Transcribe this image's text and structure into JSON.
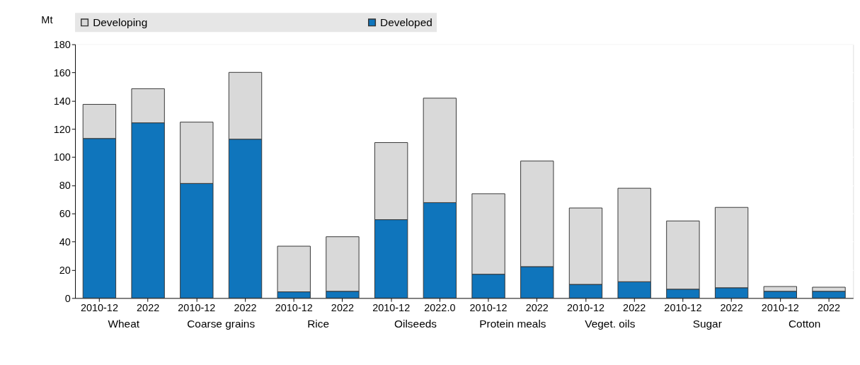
{
  "chart_data": {
    "type": "bar",
    "stacked": true,
    "ylabel": "Mt",
    "categories": [
      "2010-12",
      "2022",
      "2010-12",
      "2022",
      "2010-12",
      "2022",
      "2010-12",
      "2022.0",
      "2010-12",
      "2022",
      "2010-12",
      "2022",
      "2010-12",
      "2022",
      "2010-12",
      "2022"
    ],
    "series": [
      {
        "name": "Developed",
        "color": "#0f75bc",
        "values": [
          113.2,
          124.3,
          81.3,
          112.7,
          4.4,
          4.8,
          55.6,
          67.7,
          16.9,
          22.3,
          9.7,
          11.6,
          6.3,
          7.3,
          4.8,
          4.8
        ]
      },
      {
        "name": "Developing",
        "color": "#d9d9d9",
        "values": [
          24.2,
          24.2,
          43.5,
          47.4,
          32.4,
          38.7,
          54.7,
          74.1,
          57.1,
          74.9,
          54.2,
          66.3,
          48.4,
          57.0,
          3.4,
          2.9
        ]
      }
    ],
    "annotations": [
      "Wheat",
      "Coarse grains",
      "Rice",
      "Oilseeds",
      "Protein meals",
      "Veget. oils",
      "Sugar",
      "Cotton"
    ],
    "ylim": [
      0,
      180
    ],
    "yticks": [
      0,
      20,
      40,
      60,
      80,
      100,
      120,
      140,
      160,
      180
    ],
    "grid": "y",
    "legend": "top"
  }
}
